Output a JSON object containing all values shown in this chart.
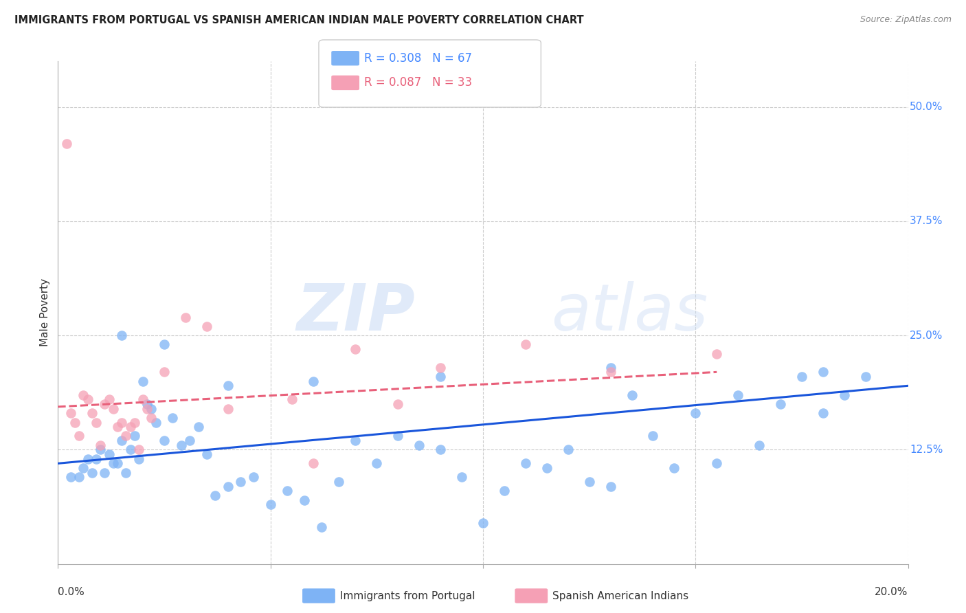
{
  "title": "IMMIGRANTS FROM PORTUGAL VS SPANISH AMERICAN INDIAN MALE POVERTY CORRELATION CHART",
  "source": "Source: ZipAtlas.com",
  "ylabel": "Male Poverty",
  "ytick_labels": [
    "50.0%",
    "37.5%",
    "25.0%",
    "12.5%"
  ],
  "ytick_values": [
    0.5,
    0.375,
    0.25,
    0.125
  ],
  "xlim": [
    0.0,
    0.2
  ],
  "ylim": [
    0.0,
    0.55
  ],
  "blue_R": 0.308,
  "blue_N": 67,
  "pink_R": 0.087,
  "pink_N": 33,
  "blue_color": "#7eb3f5",
  "pink_color": "#f5a0b5",
  "blue_line_color": "#1a56db",
  "pink_line_color": "#e8607a",
  "watermark_zip": "ZIP",
  "watermark_atlas": "atlas",
  "legend_label_blue": "Immigrants from Portugal",
  "legend_label_pink": "Spanish American Indians",
  "blue_scatter_x": [
    0.003,
    0.005,
    0.006,
    0.007,
    0.008,
    0.009,
    0.01,
    0.011,
    0.012,
    0.013,
    0.014,
    0.015,
    0.016,
    0.017,
    0.018,
    0.019,
    0.02,
    0.021,
    0.022,
    0.023,
    0.025,
    0.027,
    0.029,
    0.031,
    0.033,
    0.035,
    0.037,
    0.04,
    0.043,
    0.046,
    0.05,
    0.054,
    0.058,
    0.062,
    0.066,
    0.07,
    0.075,
    0.08,
    0.085,
    0.09,
    0.095,
    0.1,
    0.105,
    0.11,
    0.115,
    0.12,
    0.125,
    0.13,
    0.135,
    0.14,
    0.145,
    0.15,
    0.155,
    0.16,
    0.165,
    0.17,
    0.175,
    0.18,
    0.185,
    0.19,
    0.015,
    0.025,
    0.04,
    0.06,
    0.09,
    0.13,
    0.18
  ],
  "blue_scatter_y": [
    0.095,
    0.095,
    0.105,
    0.115,
    0.1,
    0.115,
    0.125,
    0.1,
    0.12,
    0.11,
    0.11,
    0.135,
    0.1,
    0.125,
    0.14,
    0.115,
    0.2,
    0.175,
    0.17,
    0.155,
    0.135,
    0.16,
    0.13,
    0.135,
    0.15,
    0.12,
    0.075,
    0.085,
    0.09,
    0.095,
    0.065,
    0.08,
    0.07,
    0.04,
    0.09,
    0.135,
    0.11,
    0.14,
    0.13,
    0.125,
    0.095,
    0.045,
    0.08,
    0.11,
    0.105,
    0.125,
    0.09,
    0.085,
    0.185,
    0.14,
    0.105,
    0.165,
    0.11,
    0.185,
    0.13,
    0.175,
    0.205,
    0.165,
    0.185,
    0.205,
    0.25,
    0.24,
    0.195,
    0.2,
    0.205,
    0.215,
    0.21
  ],
  "pink_scatter_x": [
    0.002,
    0.003,
    0.004,
    0.005,
    0.006,
    0.007,
    0.008,
    0.009,
    0.01,
    0.011,
    0.012,
    0.013,
    0.014,
    0.015,
    0.016,
    0.017,
    0.018,
    0.019,
    0.02,
    0.021,
    0.022,
    0.025,
    0.03,
    0.035,
    0.04,
    0.055,
    0.06,
    0.07,
    0.08,
    0.09,
    0.11,
    0.13,
    0.155
  ],
  "pink_scatter_y": [
    0.46,
    0.165,
    0.155,
    0.14,
    0.185,
    0.18,
    0.165,
    0.155,
    0.13,
    0.175,
    0.18,
    0.17,
    0.15,
    0.155,
    0.14,
    0.15,
    0.155,
    0.125,
    0.18,
    0.17,
    0.16,
    0.21,
    0.27,
    0.26,
    0.17,
    0.18,
    0.11,
    0.235,
    0.175,
    0.215,
    0.24,
    0.21,
    0.23
  ],
  "blue_line_x": [
    0.0,
    0.2
  ],
  "blue_line_y": [
    0.11,
    0.195
  ],
  "pink_line_x": [
    0.0,
    0.155
  ],
  "pink_line_y": [
    0.172,
    0.21
  ]
}
